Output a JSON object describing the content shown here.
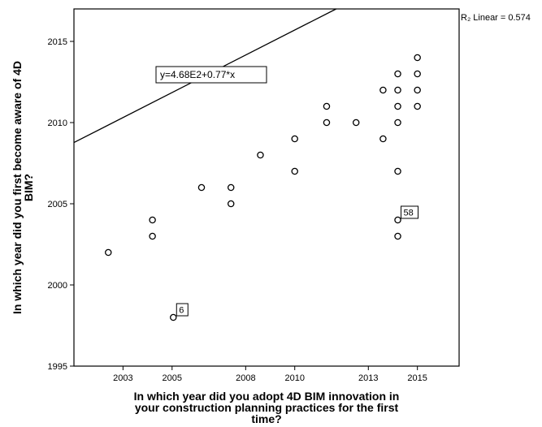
{
  "chart_data": {
    "type": "scatter",
    "xlabel_lines": [
      "In which year did you adopt 4D BIM innovation in",
      "your construction planning practices for the first",
      "time?"
    ],
    "ylabel_lines": [
      "In which year did you first become aware of 4D",
      "BIM?"
    ],
    "xlim": [
      2001,
      2016.7
    ],
    "ylim": [
      1995,
      2017
    ],
    "xticks": [
      2003,
      2005,
      2008,
      2010,
      2013,
      2015
    ],
    "yticks": [
      1995,
      2000,
      2005,
      2010,
      2015
    ],
    "fit_line": {
      "intercept": 468,
      "slope": 0.77
    },
    "equation": "y=4.68E2+0.77*x",
    "r_squared_label": "R₂ Linear = 0.574",
    "point_labels": [
      {
        "x": 2005.05,
        "y": 1998,
        "text": "6"
      },
      {
        "x": 2014.2,
        "y": 2004,
        "text": "58"
      }
    ],
    "points": [
      {
        "x": 2002.4,
        "y": 2002
      },
      {
        "x": 2004.2,
        "y": 2004
      },
      {
        "x": 2004.2,
        "y": 2003
      },
      {
        "x": 2005.05,
        "y": 1998
      },
      {
        "x": 2006.2,
        "y": 2006
      },
      {
        "x": 2007.4,
        "y": 2006
      },
      {
        "x": 2007.4,
        "y": 2005
      },
      {
        "x": 2008.6,
        "y": 2008
      },
      {
        "x": 2010.0,
        "y": 2009
      },
      {
        "x": 2010.0,
        "y": 2007
      },
      {
        "x": 2011.3,
        "y": 2011
      },
      {
        "x": 2011.3,
        "y": 2010
      },
      {
        "x": 2012.5,
        "y": 2010
      },
      {
        "x": 2013.6,
        "y": 2012
      },
      {
        "x": 2013.6,
        "y": 2009
      },
      {
        "x": 2014.2,
        "y": 2013
      },
      {
        "x": 2014.2,
        "y": 2012
      },
      {
        "x": 2014.2,
        "y": 2011
      },
      {
        "x": 2014.2,
        "y": 2010
      },
      {
        "x": 2014.2,
        "y": 2007
      },
      {
        "x": 2014.2,
        "y": 2004
      },
      {
        "x": 2014.2,
        "y": 2003
      },
      {
        "x": 2015.0,
        "y": 2014
      },
      {
        "x": 2015.0,
        "y": 2013
      },
      {
        "x": 2015.0,
        "y": 2012
      },
      {
        "x": 2015.0,
        "y": 2011
      }
    ]
  }
}
